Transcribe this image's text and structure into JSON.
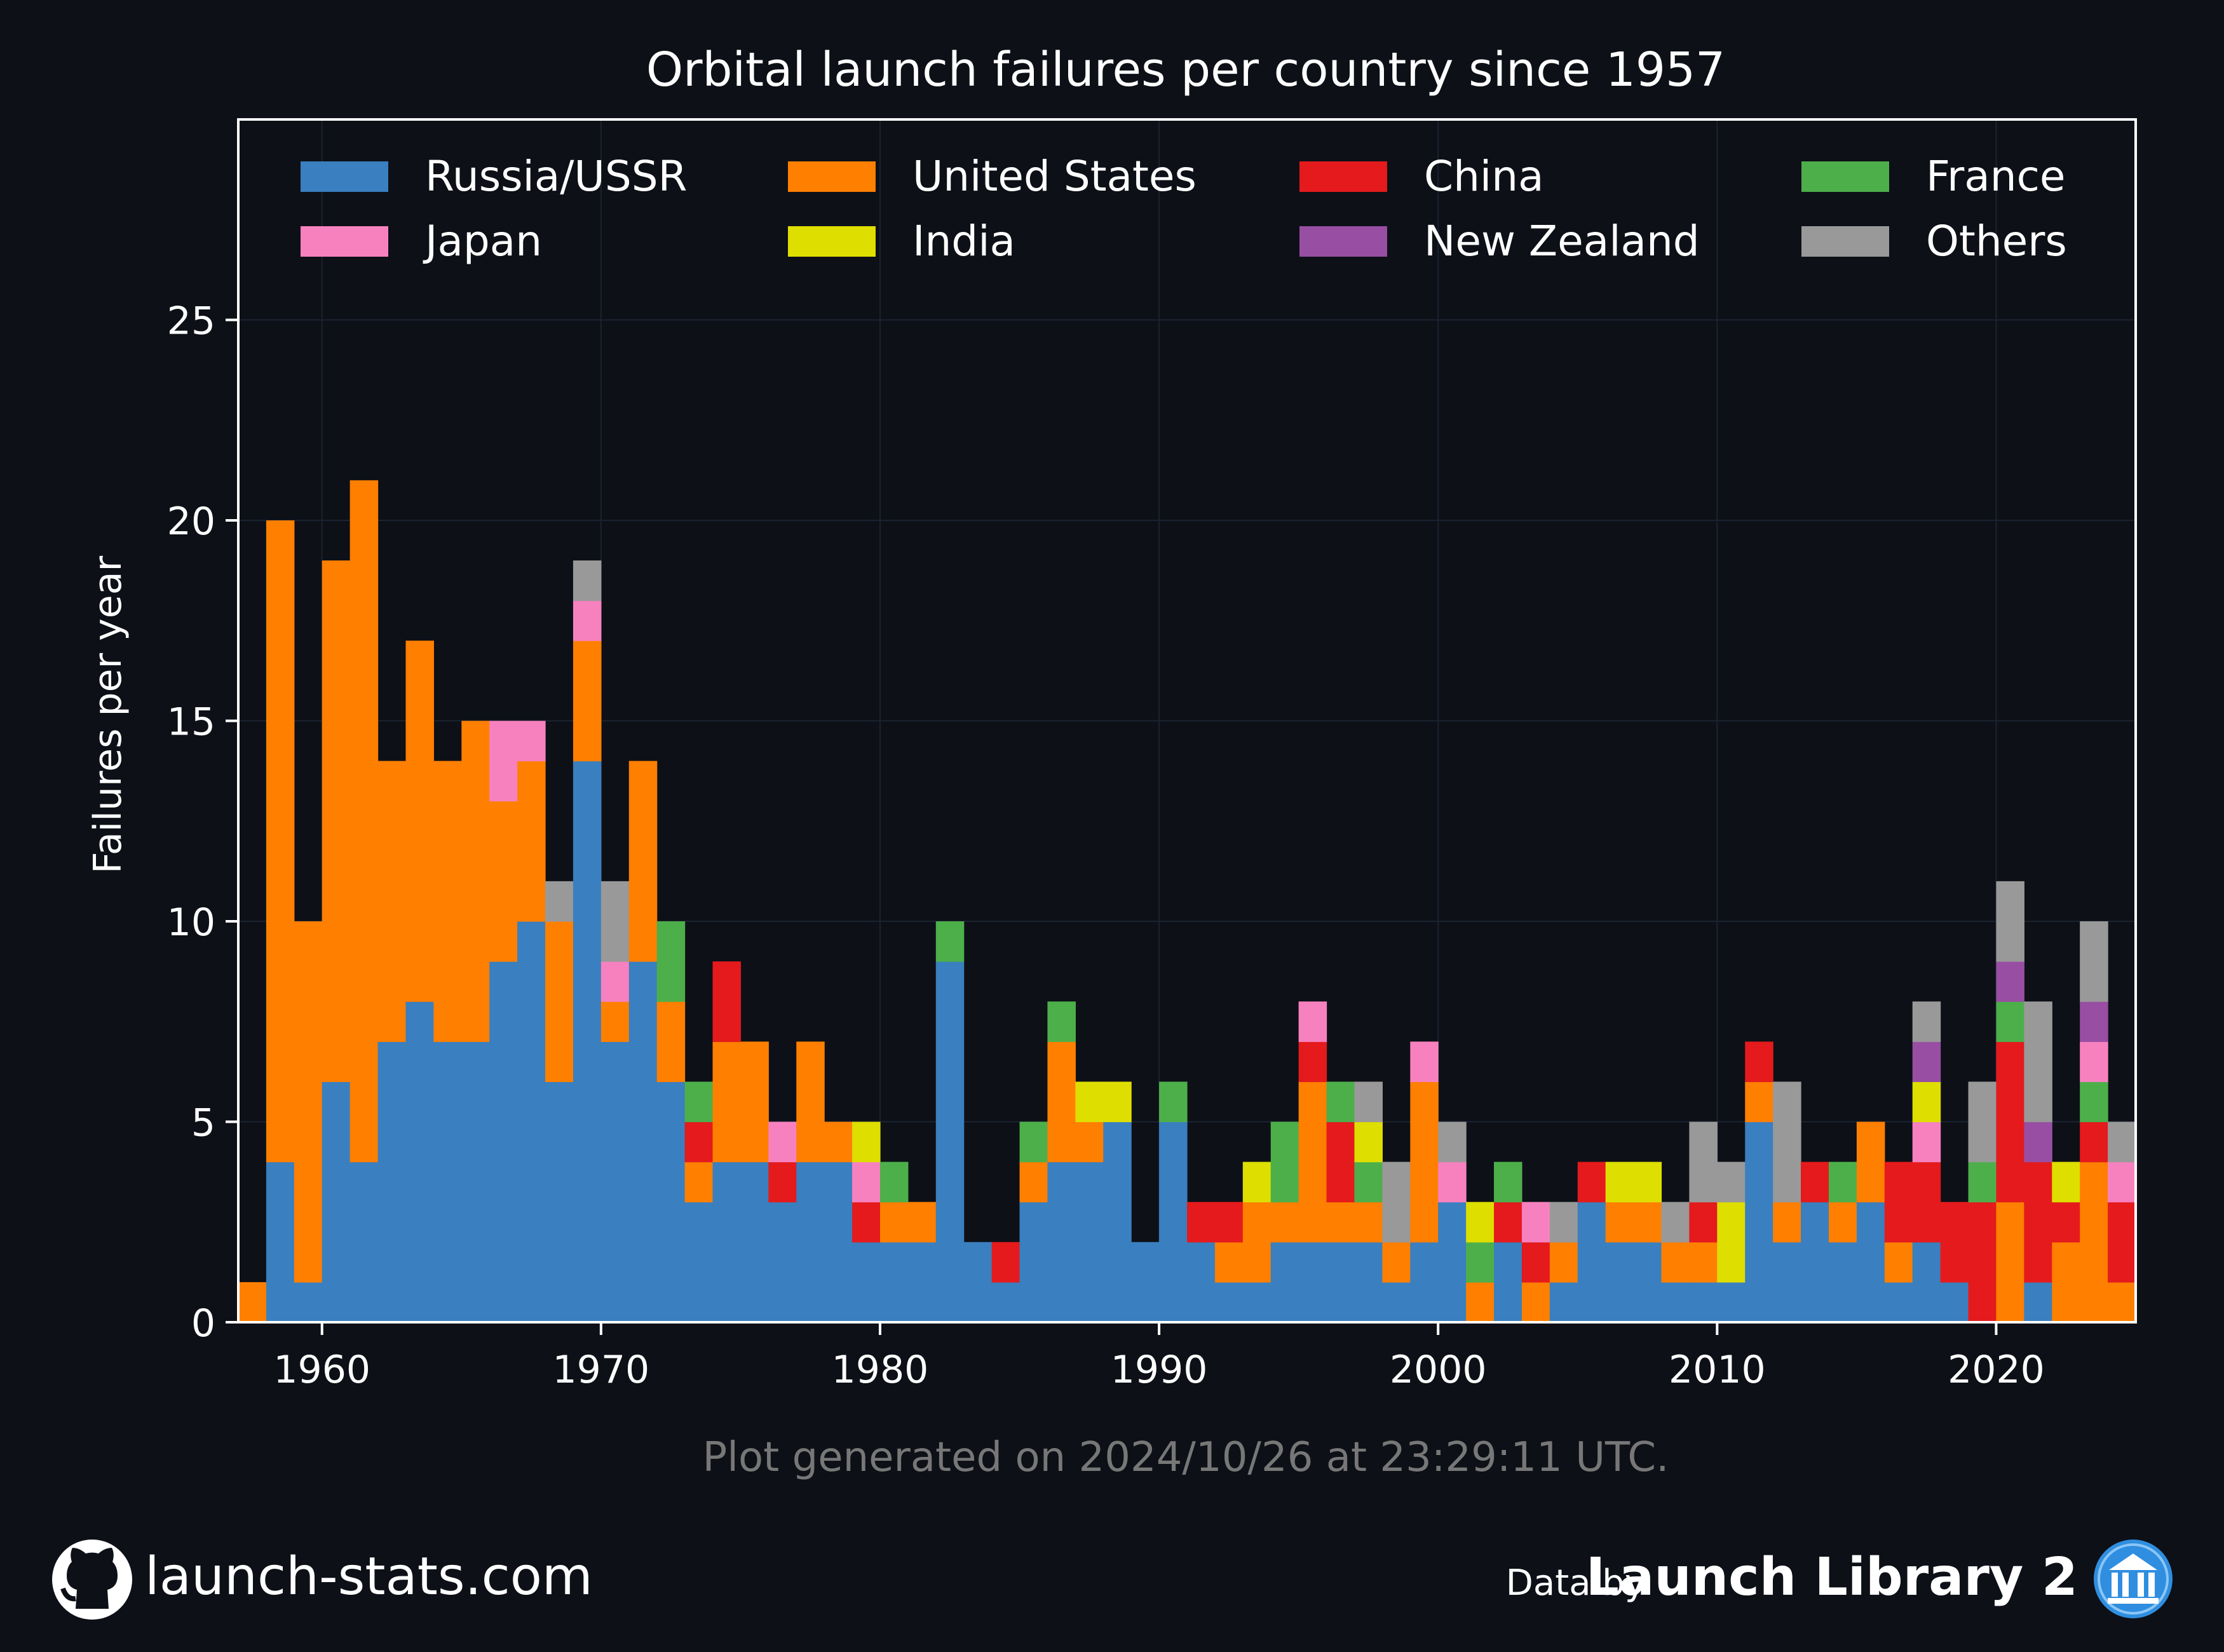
{
  "chart_data": {
    "type": "bar",
    "stacked": true,
    "title": "Orbital launch failures per country since 1957",
    "xlabel": "",
    "ylabel": "Failures per year",
    "xlim": [
      1957,
      2025
    ],
    "ylim": [
      0,
      30
    ],
    "xticks": [
      1960,
      1970,
      1980,
      1990,
      2000,
      2010,
      2020
    ],
    "yticks": [
      0,
      5,
      10,
      15,
      20,
      25
    ],
    "grid": true,
    "legend_position": "top",
    "years": [
      1957,
      1958,
      1959,
      1960,
      1961,
      1962,
      1963,
      1964,
      1965,
      1966,
      1967,
      1968,
      1969,
      1970,
      1971,
      1972,
      1973,
      1974,
      1975,
      1976,
      1977,
      1978,
      1979,
      1980,
      1981,
      1982,
      1983,
      1984,
      1985,
      1986,
      1987,
      1988,
      1989,
      1990,
      1991,
      1992,
      1993,
      1994,
      1995,
      1996,
      1997,
      1998,
      1999,
      2000,
      2001,
      2002,
      2003,
      2004,
      2005,
      2006,
      2007,
      2008,
      2009,
      2010,
      2011,
      2012,
      2013,
      2014,
      2015,
      2016,
      2017,
      2018,
      2019,
      2020,
      2021,
      2022,
      2023,
      2024
    ],
    "series": [
      {
        "name": "Russia/USSR",
        "color": "#3a7fbf",
        "values": [
          0,
          4,
          1,
          6,
          4,
          7,
          8,
          7,
          7,
          9,
          10,
          6,
          14,
          7,
          9,
          6,
          3,
          4,
          4,
          3,
          4,
          4,
          2,
          2,
          2,
          9,
          2,
          1,
          3,
          4,
          4,
          5,
          2,
          5,
          2,
          1,
          1,
          2,
          2,
          2,
          2,
          1,
          2,
          3,
          0,
          2,
          0,
          1,
          3,
          2,
          2,
          1,
          1,
          1,
          5,
          2,
          3,
          2,
          3,
          1,
          2,
          1,
          0,
          0,
          1,
          0,
          0,
          0
        ]
      },
      {
        "name": "United States",
        "color": "#ff7f00",
        "values": [
          1,
          16,
          9,
          13,
          17,
          7,
          9,
          7,
          8,
          4,
          4,
          4,
          3,
          1,
          5,
          2,
          1,
          3,
          3,
          0,
          3,
          1,
          0,
          1,
          1,
          0,
          0,
          0,
          1,
          3,
          1,
          0,
          0,
          0,
          0,
          1,
          2,
          1,
          4,
          1,
          1,
          1,
          4,
          0,
          1,
          0,
          1,
          1,
          0,
          1,
          1,
          1,
          1,
          0,
          1,
          1,
          0,
          1,
          2,
          1,
          0,
          0,
          0,
          3,
          0,
          2,
          4,
          1
        ]
      },
      {
        "name": "China",
        "color": "#e41a1c",
        "values": [
          0,
          0,
          0,
          0,
          0,
          0,
          0,
          0,
          0,
          0,
          0,
          0,
          0,
          0,
          0,
          0,
          1,
          2,
          0,
          1,
          0,
          0,
          1,
          0,
          0,
          0,
          0,
          1,
          0,
          0,
          0,
          0,
          0,
          0,
          1,
          1,
          0,
          0,
          1,
          2,
          0,
          0,
          0,
          0,
          0,
          1,
          1,
          0,
          1,
          0,
          0,
          0,
          1,
          0,
          1,
          0,
          1,
          0,
          0,
          2,
          2,
          2,
          3,
          4,
          3,
          1,
          1,
          2
        ]
      },
      {
        "name": "France",
        "color": "#4daf4a",
        "values": [
          0,
          0,
          0,
          0,
          0,
          0,
          0,
          0,
          0,
          0,
          0,
          0,
          0,
          0,
          0,
          2,
          1,
          0,
          0,
          0,
          0,
          0,
          0,
          1,
          0,
          1,
          0,
          0,
          1,
          1,
          0,
          0,
          0,
          1,
          0,
          0,
          0,
          2,
          0,
          1,
          1,
          0,
          0,
          0,
          1,
          1,
          0,
          0,
          0,
          0,
          0,
          0,
          0,
          0,
          0,
          0,
          0,
          1,
          0,
          0,
          0,
          0,
          1,
          1,
          0,
          0,
          1,
          0
        ]
      },
      {
        "name": "Japan",
        "color": "#f781bf",
        "values": [
          0,
          0,
          0,
          0,
          0,
          0,
          0,
          0,
          0,
          2,
          1,
          0,
          1,
          1,
          0,
          0,
          0,
          0,
          0,
          1,
          0,
          0,
          1,
          0,
          0,
          0,
          0,
          0,
          0,
          0,
          0,
          0,
          0,
          0,
          0,
          0,
          0,
          0,
          1,
          0,
          0,
          0,
          1,
          1,
          0,
          0,
          1,
          0,
          0,
          0,
          0,
          0,
          0,
          0,
          0,
          0,
          0,
          0,
          0,
          0,
          1,
          0,
          0,
          0,
          0,
          0,
          1,
          1
        ]
      },
      {
        "name": "India",
        "color": "#dede00",
        "values": [
          0,
          0,
          0,
          0,
          0,
          0,
          0,
          0,
          0,
          0,
          0,
          0,
          0,
          0,
          0,
          0,
          0,
          0,
          0,
          0,
          0,
          0,
          1,
          0,
          0,
          0,
          0,
          0,
          0,
          0,
          1,
          1,
          0,
          0,
          0,
          0,
          1,
          0,
          0,
          0,
          1,
          0,
          0,
          0,
          1,
          0,
          0,
          0,
          0,
          1,
          1,
          0,
          0,
          2,
          0,
          0,
          0,
          0,
          0,
          0,
          1,
          0,
          0,
          0,
          0,
          1,
          0,
          0
        ]
      },
      {
        "name": "New Zealand",
        "color": "#984ea3",
        "values": [
          0,
          0,
          0,
          0,
          0,
          0,
          0,
          0,
          0,
          0,
          0,
          0,
          0,
          0,
          0,
          0,
          0,
          0,
          0,
          0,
          0,
          0,
          0,
          0,
          0,
          0,
          0,
          0,
          0,
          0,
          0,
          0,
          0,
          0,
          0,
          0,
          0,
          0,
          0,
          0,
          0,
          0,
          0,
          0,
          0,
          0,
          0,
          0,
          0,
          0,
          0,
          0,
          0,
          0,
          0,
          0,
          0,
          0,
          0,
          0,
          1,
          0,
          0,
          1,
          1,
          0,
          1,
          0
        ]
      },
      {
        "name": "Others",
        "color": "#999999",
        "values": [
          0,
          0,
          0,
          0,
          0,
          0,
          0,
          0,
          0,
          0,
          0,
          1,
          1,
          2,
          0,
          0,
          0,
          0,
          0,
          0,
          0,
          0,
          0,
          0,
          0,
          0,
          0,
          0,
          0,
          0,
          0,
          0,
          0,
          0,
          0,
          0,
          0,
          0,
          0,
          0,
          1,
          2,
          0,
          1,
          0,
          0,
          0,
          1,
          0,
          0,
          0,
          1,
          2,
          1,
          0,
          3,
          0,
          0,
          0,
          0,
          1,
          0,
          2,
          2,
          3,
          0,
          2,
          1
        ]
      }
    ],
    "footnote": "Plot generated on 2024/10/26 at 23:29:11 UTC."
  },
  "footer": {
    "site": "launch-stats.com",
    "data_by": "Data by",
    "source": "Launch Library 2"
  },
  "colors": {
    "background": "#0d1017",
    "text": "#ffffff",
    "footnote": "#777777",
    "source_logo": "#2f8ee0"
  },
  "icons": {
    "site": "github-icon",
    "source": "library-icon"
  }
}
